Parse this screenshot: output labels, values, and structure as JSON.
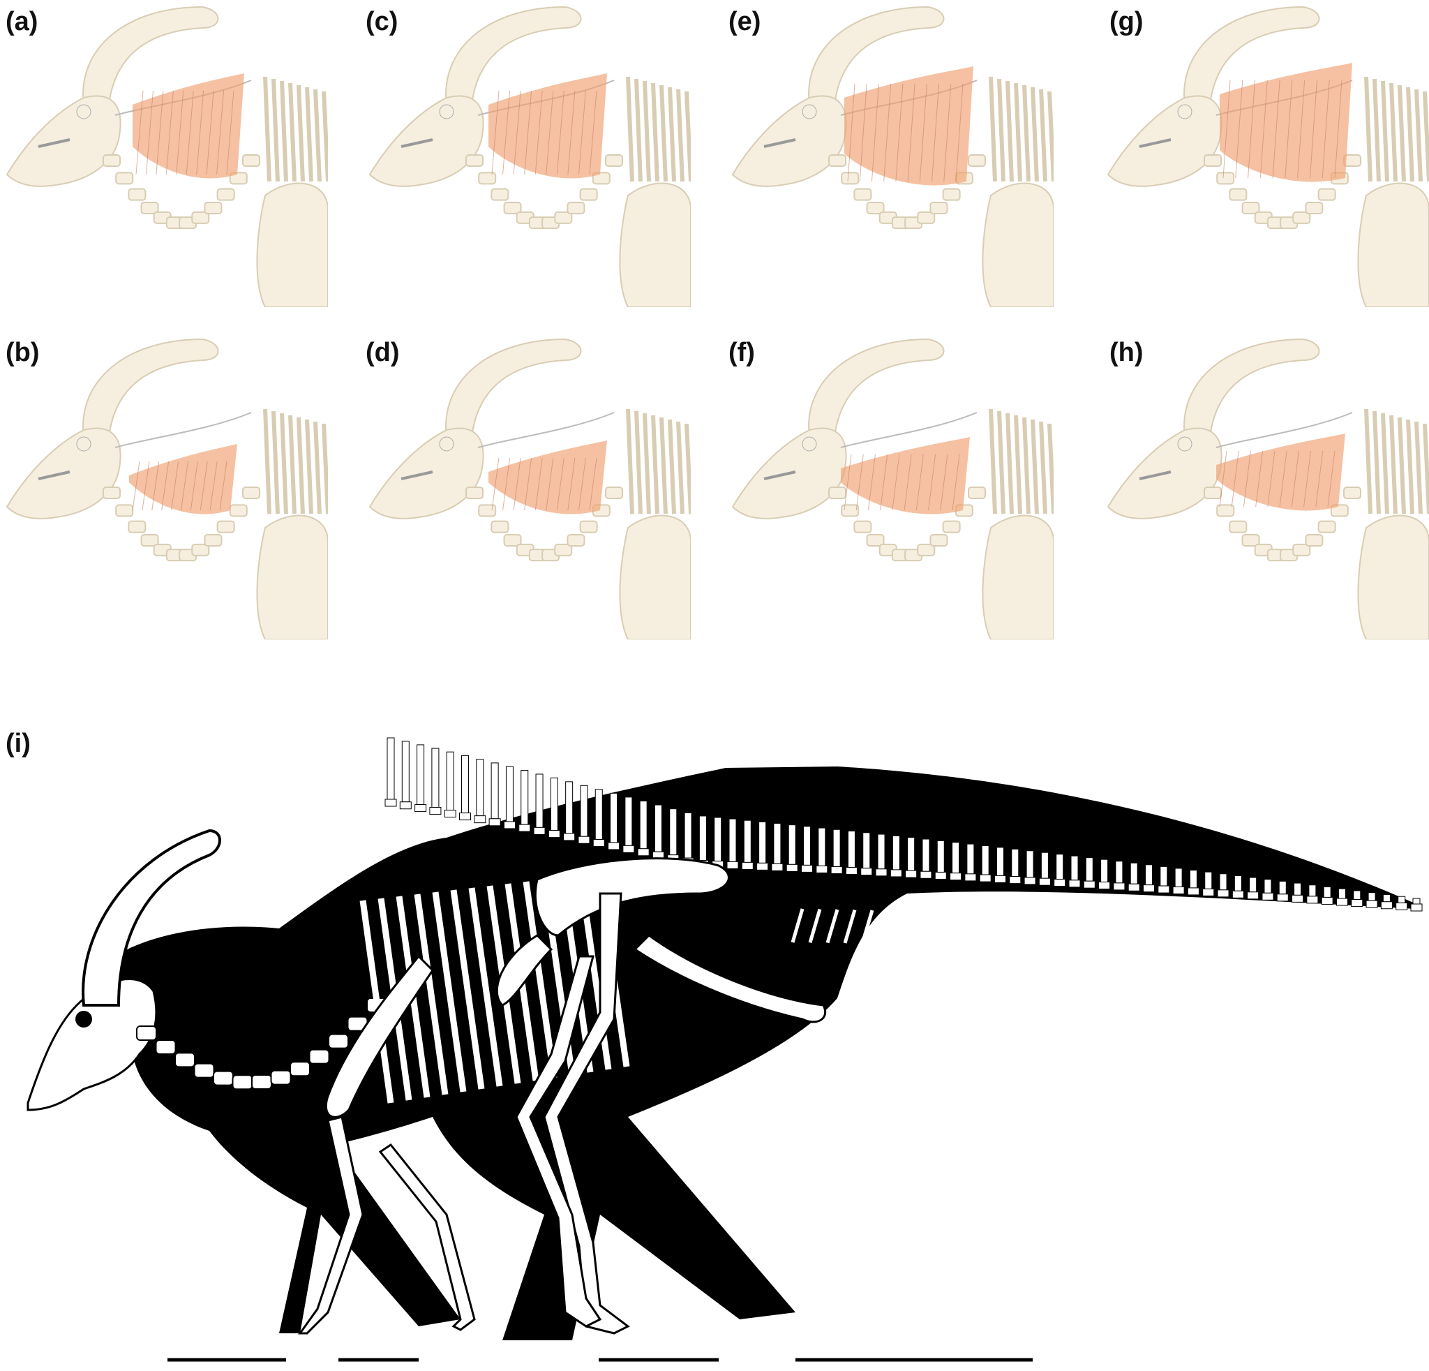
{
  "figure": {
    "panels": [
      {
        "label": "(a)",
        "id": "a",
        "row": 0,
        "col": 0
      },
      {
        "label": "(b)",
        "id": "b",
        "row": 1,
        "col": 0
      },
      {
        "label": "(c)",
        "id": "c",
        "row": 0,
        "col": 1
      },
      {
        "label": "(d)",
        "id": "d",
        "row": 1,
        "col": 1
      },
      {
        "label": "(e)",
        "id": "e",
        "row": 0,
        "col": 2
      },
      {
        "label": "(f)",
        "id": "f",
        "row": 1,
        "col": 2
      },
      {
        "label": "(g)",
        "id": "g",
        "row": 0,
        "col": 3
      },
      {
        "label": "(h)",
        "id": "h",
        "row": 1,
        "col": 3
      }
    ],
    "main_label": "(i)",
    "colors": {
      "bone_fill": "#f6efe0",
      "bone_stroke": "#d8cdb3",
      "muscle": "#f0a070",
      "silhouette": "#000000",
      "bone_white": "#ffffff",
      "label_text": "#111111"
    },
    "scale_bars_count": 4
  }
}
